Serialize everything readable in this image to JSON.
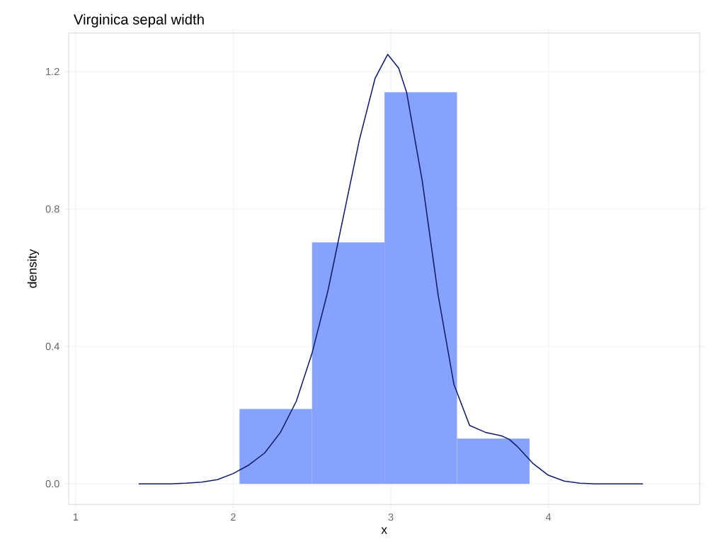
{
  "chart_data": {
    "type": "histogram",
    "title": "Virginica sepal width",
    "xlabel": "x",
    "ylabel": "density",
    "bins": [
      2.04,
      2.5,
      2.96,
      3.42,
      3.88
    ],
    "values": [
      0.218,
      0.703,
      1.14,
      0.132
    ],
    "color": "#87a2fc",
    "series": [
      {
        "type": "line",
        "color": "#101d6b",
        "x": [
          1.4,
          1.6,
          1.7,
          1.8,
          1.9,
          2.0,
          2.1,
          2.2,
          2.3,
          2.4,
          2.5,
          2.6,
          2.7,
          2.8,
          2.9,
          2.98,
          3.05,
          3.1,
          3.2,
          3.3,
          3.4,
          3.5,
          3.6,
          3.7,
          3.75,
          3.8,
          3.9,
          4.0,
          4.1,
          4.2,
          4.3,
          4.6
        ],
        "values": [
          0,
          0,
          0.002,
          0.005,
          0.012,
          0.03,
          0.055,
          0.09,
          0.15,
          0.24,
          0.38,
          0.56,
          0.78,
          1.0,
          1.18,
          1.25,
          1.21,
          1.14,
          0.88,
          0.55,
          0.29,
          0.17,
          0.15,
          0.14,
          0.13,
          0.11,
          0.06,
          0.025,
          0.008,
          0.002,
          0,
          0
        ]
      }
    ],
    "xlim": [
      0.956,
      4.96
    ],
    "ylim": [
      -0.06,
      1.312
    ],
    "xticks": [
      1,
      2,
      3,
      4
    ],
    "yticks": [
      {
        "value": 0,
        "label": "0.0"
      },
      {
        "value": 0.4,
        "label": "0.4"
      },
      {
        "value": 0.8,
        "label": "0.8"
      },
      {
        "value": 1.2,
        "label": "1.2"
      }
    ],
    "grid": true
  }
}
